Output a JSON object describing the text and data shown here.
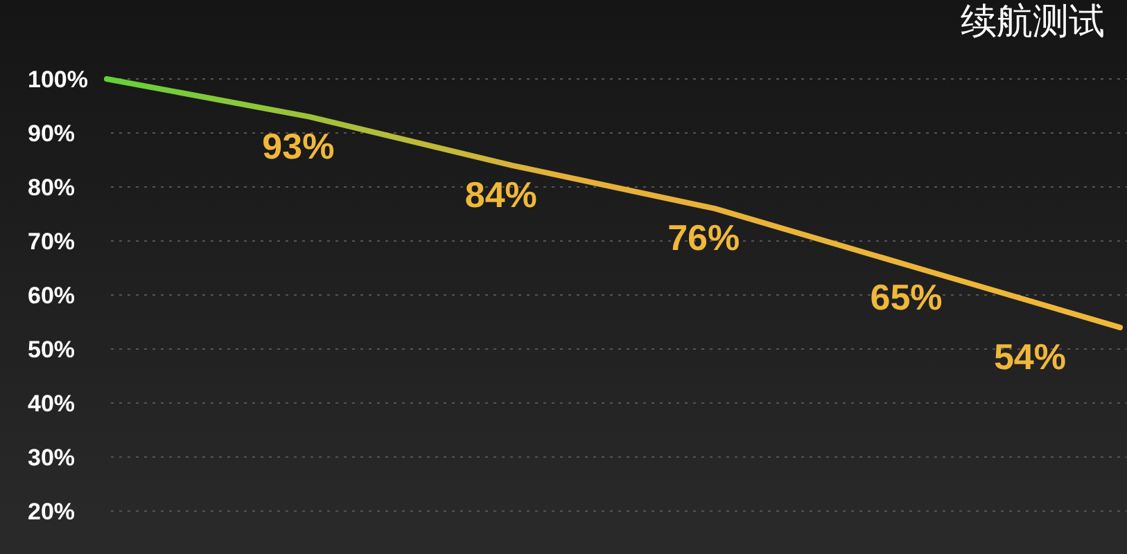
{
  "chart_data": {
    "type": "line",
    "title": "续航测试",
    "categories": [
      null,
      null,
      null,
      null,
      null,
      null
    ],
    "series": [
      {
        "color": "#f0b83a",
        "values": [
          100,
          93,
          84,
          76,
          65,
          54
        ],
        "value_labels": [
          null,
          "93%",
          "84%",
          "76%",
          "65%",
          "54%"
        ]
      }
    ],
    "ylim": [
      20,
      100
    ],
    "yticks": [
      {
        "value": 20,
        "label": "20%"
      },
      {
        "value": 30,
        "label": "30%"
      },
      {
        "value": 40,
        "label": "40%"
      },
      {
        "value": 50,
        "label": "50%"
      },
      {
        "value": 60,
        "label": "60%"
      },
      {
        "value": 70,
        "label": "70%"
      },
      {
        "value": 80,
        "label": "80%"
      },
      {
        "value": 90,
        "label": "90%"
      },
      {
        "value": 100,
        "label": "100%"
      }
    ],
    "grid": "y",
    "marker": "none",
    "line_style": "solid"
  }
}
